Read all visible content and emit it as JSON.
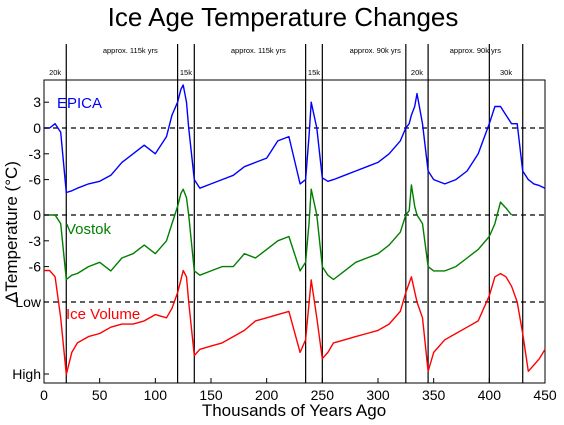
{
  "chart_data": {
    "type": "line",
    "title": "Ice Age Temperature Changes",
    "xlabel": "Thousands of Years Ago",
    "ylabel": "ΔTemperature (°C)",
    "xlim": [
      0,
      450
    ],
    "x_ticks": [
      "0",
      "50",
      "100",
      "150",
      "200",
      "250",
      "300",
      "350",
      "400",
      "450"
    ],
    "y_ticks_top": [
      "3",
      "0",
      "-3",
      "-6"
    ],
    "y_ticks_mid": [
      "0",
      "-3",
      "-6"
    ],
    "y_ticks_bottom": [
      "Low",
      "High"
    ],
    "ylim_temperature": [
      -8,
      5
    ],
    "ice_volume_scale": [
      "Low",
      "High"
    ],
    "band_labels": [
      {
        "text": "approx. 115k yrs",
        "start": 20,
        "end": 135
      },
      {
        "text": "approx. 115k yrs",
        "start": 135,
        "end": 250
      },
      {
        "text": "approx. 90k yrs",
        "start": 250,
        "end": 345
      },
      {
        "text": "approx. 90k yrs",
        "start": 345,
        "end": 430
      }
    ],
    "interglacial_labels": [
      {
        "text": "20k",
        "start": 0,
        "end": 20
      },
      {
        "text": "15k",
        "start": 120,
        "end": 135
      },
      {
        "text": "15k",
        "start": 235,
        "end": 250
      },
      {
        "text": "20k",
        "start": 325,
        "end": 345
      },
      {
        "text": "30k",
        "start": 400,
        "end": 430
      }
    ],
    "boundaries": [
      20,
      120,
      135,
      235,
      250,
      325,
      345,
      400,
      430
    ],
    "series": [
      {
        "name": "EPICA",
        "color": "#0000ff",
        "x": [
          0,
          5,
          10,
          15,
          20,
          25,
          30,
          40,
          50,
          60,
          70,
          80,
          90,
          100,
          110,
          115,
          120,
          123,
          125,
          128,
          130,
          135,
          140,
          150,
          160,
          170,
          180,
          190,
          200,
          210,
          220,
          230,
          235,
          238,
          240,
          245,
          250,
          255,
          260,
          270,
          280,
          290,
          300,
          310,
          320,
          325,
          328,
          330,
          333,
          335,
          340,
          345,
          350,
          360,
          370,
          380,
          390,
          400,
          405,
          410,
          415,
          420,
          425,
          430,
          435,
          440,
          445,
          450
        ],
        "y": [
          0,
          0,
          0.5,
          -0.5,
          -7.5,
          -7.3,
          -7,
          -6.5,
          -6.2,
          -5.5,
          -4,
          -3,
          -2,
          -3,
          -1,
          1.5,
          3,
          4.5,
          5,
          3,
          0,
          -6,
          -7,
          -6.5,
          -6,
          -5.5,
          -4.5,
          -4,
          -3.5,
          -1.5,
          -1,
          -6.5,
          -6,
          -1,
          3,
          0,
          -5.8,
          -6.2,
          -6,
          -5.5,
          -5,
          -4.5,
          -4,
          -3,
          -1.5,
          0,
          0.5,
          1.5,
          2.5,
          4,
          0.5,
          -5,
          -6,
          -6.5,
          -6,
          -5,
          -3,
          0.5,
          2.5,
          2.5,
          1.5,
          0.5,
          0.5,
          -5,
          -6,
          -6.5,
          -6.7,
          -7
        ]
      },
      {
        "name": "Vostok",
        "color": "#007f00",
        "x": [
          0,
          5,
          10,
          15,
          20,
          25,
          30,
          40,
          50,
          60,
          70,
          80,
          90,
          100,
          110,
          115,
          120,
          123,
          125,
          128,
          130,
          135,
          140,
          150,
          160,
          170,
          180,
          190,
          200,
          210,
          220,
          230,
          235,
          238,
          240,
          245,
          250,
          255,
          260,
          270,
          280,
          290,
          300,
          310,
          320,
          325,
          328,
          330,
          333,
          335,
          340,
          345,
          350,
          360,
          370,
          380,
          390,
          400,
          405,
          410,
          415,
          420
        ],
        "y": [
          0,
          0,
          0,
          -1,
          -7.5,
          -7,
          -6.8,
          -6,
          -5.5,
          -6.5,
          -5,
          -4.5,
          -3.5,
          -4.5,
          -3,
          -1,
          1,
          2.5,
          3,
          2,
          0,
          -6.5,
          -7,
          -6.5,
          -6,
          -6,
          -4.5,
          -5,
          -4,
          -3,
          -2.5,
          -6.5,
          -5.5,
          -1,
          3,
          0,
          -6,
          -7,
          -7.5,
          -6.5,
          -5.5,
          -5,
          -4.5,
          -3.5,
          -2,
          0,
          0.5,
          3.5,
          1,
          0,
          -1,
          -6,
          -6.5,
          -6.5,
          -6,
          -5,
          -4,
          -2.5,
          -1,
          1.5,
          0.8,
          0
        ]
      },
      {
        "name": "Ice Volume",
        "color": "#ff0000",
        "x": [
          0,
          5,
          10,
          15,
          20,
          25,
          30,
          40,
          50,
          60,
          70,
          80,
          90,
          100,
          110,
          115,
          120,
          123,
          125,
          128,
          130,
          135,
          140,
          150,
          160,
          170,
          180,
          190,
          200,
          210,
          220,
          230,
          235,
          240,
          245,
          250,
          255,
          260,
          270,
          280,
          290,
          300,
          310,
          320,
          325,
          330,
          335,
          340,
          345,
          350,
          360,
          370,
          380,
          390,
          400,
          405,
          410,
          415,
          420,
          425,
          430,
          435,
          440,
          445,
          450
        ],
        "y": [
          1,
          1,
          0.8,
          -0.5,
          -2.3,
          -1.6,
          -1.3,
          -1.1,
          -1,
          -0.8,
          -0.7,
          -0.7,
          -0.6,
          -0.4,
          -0.5,
          -0.2,
          0.3,
          0.7,
          1,
          0.8,
          0,
          -1.7,
          -1.5,
          -1.4,
          -1.3,
          -1.1,
          -0.9,
          -0.6,
          -0.5,
          -0.4,
          -0.3,
          -1.6,
          -1.2,
          0.7,
          -0.5,
          -1.8,
          -1.6,
          -1.3,
          -1.2,
          -1.1,
          -1,
          -0.9,
          -0.7,
          -0.3,
          0.3,
          0.8,
          0,
          -0.5,
          -2.2,
          -1.6,
          -1.2,
          -1,
          -0.8,
          -0.6,
          0.2,
          0.8,
          0.9,
          0.8,
          0.5,
          0,
          -1,
          -2.2,
          -2,
          -1.8,
          -1.5
        ]
      }
    ]
  }
}
